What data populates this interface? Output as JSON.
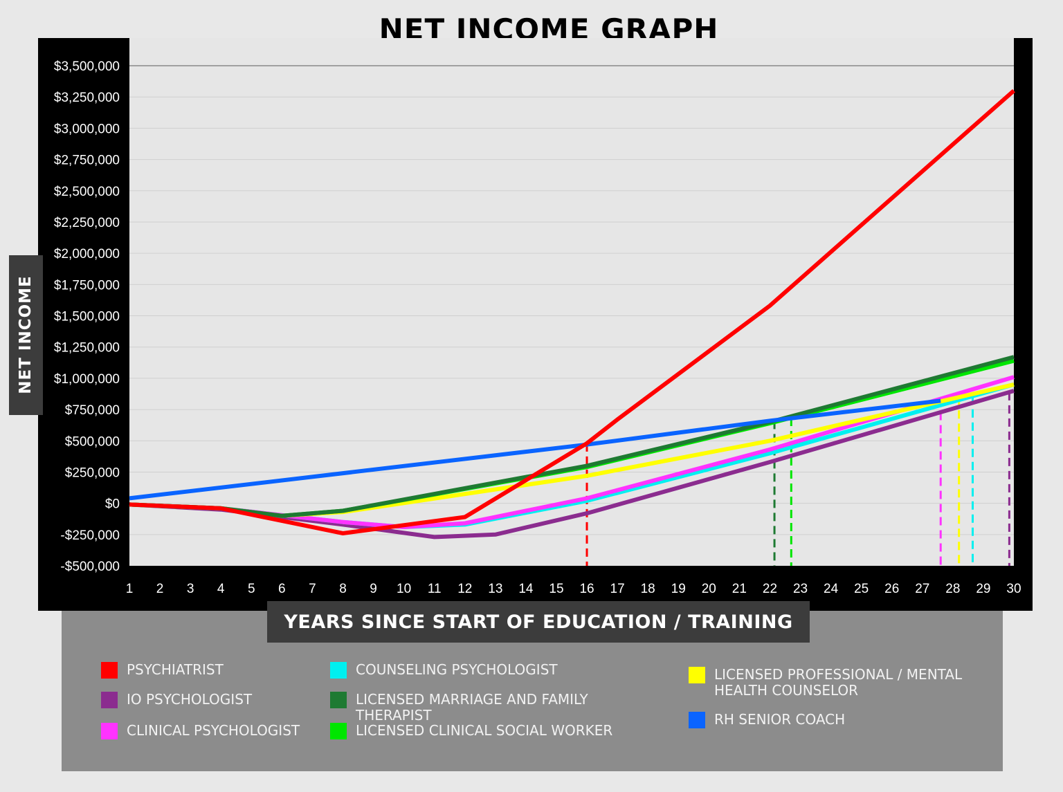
{
  "chart_data": {
    "type": "line",
    "title": "NET INCOME GRAPH",
    "xlabel": "YEARS SINCE START OF EDUCATION / TRAINING",
    "ylabel": "NET INCOME",
    "ylim": [
      -500000,
      3500000
    ],
    "xlim": [
      1,
      30
    ],
    "y_ticks": [
      {
        "value": 3500000,
        "label": "$3,500,000"
      },
      {
        "value": 3250000,
        "label": "$3,250,000"
      },
      {
        "value": 3000000,
        "label": "$3,000,000"
      },
      {
        "value": 2750000,
        "label": "$2,750,000"
      },
      {
        "value": 2500000,
        "label": "$2,500,000"
      },
      {
        "value": 2250000,
        "label": "$2,250,000"
      },
      {
        "value": 2000000,
        "label": "$2,000,000"
      },
      {
        "value": 1750000,
        "label": "$1,750,000"
      },
      {
        "value": 1500000,
        "label": "$1,500,000"
      },
      {
        "value": 1250000,
        "label": "$1,250,000"
      },
      {
        "value": 1000000,
        "label": "$1,000,000"
      },
      {
        "value": 750000,
        "label": "$750,000"
      },
      {
        "value": 500000,
        "label": "$500,000"
      },
      {
        "value": 250000,
        "label": "$250,000"
      },
      {
        "value": 0,
        "label": "$0"
      },
      {
        "value": -250000,
        "label": "-$250,000"
      },
      {
        "value": -500000,
        "label": "-$500,000"
      }
    ],
    "x_ticks": [
      "1",
      "2",
      "3",
      "4",
      "5",
      "6",
      "7",
      "8",
      "9",
      "10",
      "11",
      "12",
      "13",
      "14",
      "15",
      "16",
      "17",
      "18",
      "19",
      "20",
      "21",
      "22",
      "23",
      "24",
      "25",
      "26",
      "27",
      "28",
      "29",
      "30"
    ],
    "grid": true,
    "legend_position": "bottom",
    "series": [
      {
        "name": "PSYCHIATRIST",
        "color": "#ff0000",
        "points": [
          [
            1,
            -10000
          ],
          [
            4,
            -40000
          ],
          [
            8,
            -240000
          ],
          [
            12,
            -110000
          ],
          [
            16,
            480000
          ],
          [
            17,
            670000
          ],
          [
            22,
            1580000
          ],
          [
            30,
            3300000
          ]
        ]
      },
      {
        "name": "IO PSYCHOLOGIST",
        "color": "#8b2c8f",
        "points": [
          [
            1,
            -10000
          ],
          [
            4,
            -50000
          ],
          [
            6,
            -110000
          ],
          [
            8,
            -170000
          ],
          [
            11,
            -270000
          ],
          [
            13,
            -250000
          ],
          [
            16,
            -80000
          ],
          [
            22,
            330000
          ],
          [
            30,
            900000
          ]
        ]
      },
      {
        "name": "CLINICAL PSYCHOLOGIST",
        "color": "#ff33ff",
        "points": [
          [
            1,
            -10000
          ],
          [
            4,
            -40000
          ],
          [
            8,
            -150000
          ],
          [
            10,
            -190000
          ],
          [
            12,
            -160000
          ],
          [
            16,
            40000
          ],
          [
            22,
            430000
          ],
          [
            30,
            1010000
          ]
        ]
      },
      {
        "name": "COUNSELING PSYCHOLOGIST",
        "color": "#00f0f0",
        "points": [
          [
            1,
            -10000
          ],
          [
            4,
            -40000
          ],
          [
            8,
            -150000
          ],
          [
            10,
            -190000
          ],
          [
            12,
            -170000
          ],
          [
            16,
            20000
          ],
          [
            22,
            400000
          ],
          [
            30,
            950000
          ]
        ]
      },
      {
        "name": "LICENSED MARRIAGE AND FAMILY THERAPIST",
        "color": "#1e7a32",
        "points": [
          [
            1,
            -10000
          ],
          [
            4,
            -40000
          ],
          [
            6,
            -100000
          ],
          [
            8,
            -60000
          ],
          [
            16,
            300000
          ],
          [
            22,
            650000
          ],
          [
            30,
            1170000
          ]
        ]
      },
      {
        "name": "LICENSED CLINICAL SOCIAL WORKER",
        "color": "#00e600",
        "points": [
          [
            1,
            -10000
          ],
          [
            4,
            -40000
          ],
          [
            6,
            -100000
          ],
          [
            8,
            -60000
          ],
          [
            16,
            290000
          ],
          [
            22,
            640000
          ],
          [
            30,
            1140000
          ]
        ]
      },
      {
        "name": "LICENSED PROFESSIONAL / MENTAL\nHEALTH COUNSELOR",
        "color": "#ffff00",
        "points": [
          [
            1,
            -10000
          ],
          [
            4,
            -40000
          ],
          [
            6,
            -100000
          ],
          [
            8,
            -70000
          ],
          [
            16,
            220000
          ],
          [
            22,
            500000
          ],
          [
            30,
            950000
          ]
        ]
      },
      {
        "name": "RH SENIOR COACH",
        "color": "#0a64ff",
        "points": [
          [
            1,
            40000
          ],
          [
            16,
            470000
          ],
          [
            22,
            660000
          ],
          [
            27.6,
            820000
          ]
        ]
      }
    ],
    "breakeven_markers": [
      {
        "series": "PSYCHIATRIST",
        "color": "#ff0000",
        "year": 16
      },
      {
        "series": "LICENSED MARRIAGE AND FAMILY THERAPIST",
        "color": "#1e7a32",
        "year": 22.15
      },
      {
        "series": "LICENSED CLINICAL SOCIAL WORKER",
        "color": "#00e600",
        "year": 22.7
      },
      {
        "series": "CLINICAL PSYCHOLOGIST",
        "color": "#ff33ff",
        "year": 27.6
      },
      {
        "series": "LICENSED PROFESSIONAL / MENTAL\nHEALTH COUNSELOR",
        "color": "#ffff00",
        "year": 28.2
      },
      {
        "series": "COUNSELING PSYCHOLOGIST",
        "color": "#00f0f0",
        "year": 28.65
      },
      {
        "series": "IO PSYCHOLOGIST",
        "color": "#8b2c8f",
        "year": 29.85
      }
    ]
  }
}
